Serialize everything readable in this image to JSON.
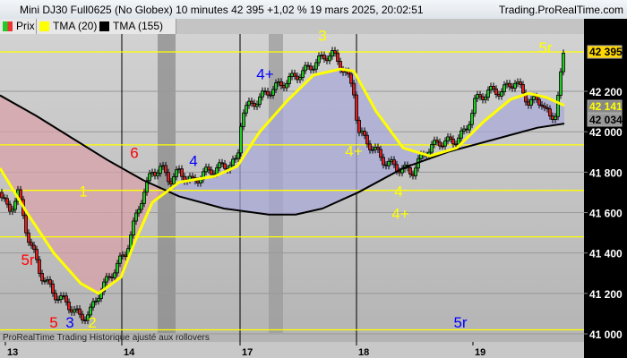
{
  "header": {
    "title": "Mini DJ30 Full0625 (No Globex) 10 minutes 42 395 +1,02 % 19 mars 2025, 20:02:51",
    "site": "Trading.ProRealTime.com"
  },
  "legend": [
    {
      "label": "Prix",
      "color": "#e03030"
    },
    {
      "label": "TMA (20)",
      "color": "#ffff00"
    },
    {
      "label": "TMA (155)",
      "color": "#000000"
    }
  ],
  "footer": "ProRealTime Trading  Historique ajusté aux rollovers",
  "chart_data": {
    "type": "line",
    "ylim": [
      40990,
      42500
    ],
    "y_ticks": [
      "42 200",
      "42 000",
      "41 800",
      "41 600",
      "41 400",
      "41 200",
      "41 000"
    ],
    "y_tick_values": [
      42200,
      42000,
      41800,
      41600,
      41400,
      41200,
      41000
    ],
    "x_ticks": [
      "13",
      "14",
      "17",
      "18",
      "19"
    ],
    "price_labels": [
      {
        "text": "42 395",
        "value": 42395,
        "color": "#ffd700"
      },
      {
        "text": "42 141",
        "value": 42141,
        "color": "#ffff00"
      },
      {
        "text": "42 034",
        "value": 42034,
        "color": "#999999"
      }
    ],
    "horizontal_levels": [
      42395,
      41935,
      41710,
      41480,
      41020
    ],
    "series": [
      {
        "name": "Prix",
        "points": [
          [
            0,
            41700
          ],
          [
            10,
            41600
          ],
          [
            20,
            41700
          ],
          [
            30,
            41500
          ],
          [
            45,
            41300
          ],
          [
            60,
            41200
          ],
          [
            75,
            41150
          ],
          [
            90,
            41080
          ],
          [
            100,
            41100
          ],
          [
            110,
            41200
          ],
          [
            125,
            41300
          ],
          [
            140,
            41400
          ],
          [
            150,
            41550
          ],
          [
            160,
            41700
          ],
          [
            170,
            41800
          ],
          [
            180,
            41820
          ],
          [
            190,
            41760
          ],
          [
            200,
            41800
          ],
          [
            215,
            41750
          ],
          [
            230,
            41800
          ],
          [
            250,
            41830
          ],
          [
            265,
            41850
          ],
          [
            270,
            42100
          ],
          [
            285,
            42150
          ],
          [
            300,
            42200
          ],
          [
            320,
            42250
          ],
          [
            340,
            42300
          ],
          [
            355,
            42350
          ],
          [
            370,
            42390
          ],
          [
            385,
            42300
          ],
          [
            395,
            42200
          ],
          [
            400,
            42000
          ],
          [
            410,
            41950
          ],
          [
            420,
            41900
          ],
          [
            430,
            41850
          ],
          [
            445,
            41820
          ],
          [
            460,
            41800
          ],
          [
            475,
            41900
          ],
          [
            490,
            41950
          ],
          [
            505,
            41950
          ],
          [
            520,
            42000
          ],
          [
            530,
            42150
          ],
          [
            545,
            42200
          ],
          [
            560,
            42200
          ],
          [
            575,
            42250
          ],
          [
            590,
            42150
          ],
          [
            605,
            42150
          ],
          [
            615,
            42050
          ],
          [
            620,
            42100
          ],
          [
            625,
            42250
          ],
          [
            630,
            42395
          ]
        ]
      },
      {
        "name": "TMA (20)",
        "points": [
          [
            0,
            41820
          ],
          [
            30,
            41600
          ],
          [
            60,
            41400
          ],
          [
            90,
            41250
          ],
          [
            110,
            41200
          ],
          [
            135,
            41280
          ],
          [
            150,
            41450
          ],
          [
            170,
            41650
          ],
          [
            200,
            41750
          ],
          [
            240,
            41780
          ],
          [
            265,
            41830
          ],
          [
            290,
            42000
          ],
          [
            320,
            42150
          ],
          [
            350,
            42280
          ],
          [
            380,
            42310
          ],
          [
            395,
            42300
          ],
          [
            420,
            42100
          ],
          [
            450,
            41920
          ],
          [
            480,
            41880
          ],
          [
            510,
            41920
          ],
          [
            540,
            42050
          ],
          [
            570,
            42160
          ],
          [
            590,
            42190
          ],
          [
            610,
            42170
          ],
          [
            630,
            42130
          ]
        ]
      },
      {
        "name": "TMA (155)",
        "points": [
          [
            0,
            42180
          ],
          [
            40,
            42080
          ],
          [
            80,
            41970
          ],
          [
            120,
            41860
          ],
          [
            160,
            41760
          ],
          [
            200,
            41680
          ],
          [
            250,
            41620
          ],
          [
            300,
            41590
          ],
          [
            330,
            41590
          ],
          [
            360,
            41620
          ],
          [
            400,
            41700
          ],
          [
            450,
            41820
          ],
          [
            500,
            41900
          ],
          [
            550,
            41960
          ],
          [
            600,
            42020
          ],
          [
            630,
            42040
          ]
        ]
      }
    ],
    "annotations": [
      {
        "text": "3",
        "color": "#ffff00",
        "pos": [
          360,
          42450
        ]
      },
      {
        "text": "5r",
        "color": "#ffff00",
        "pos": [
          609,
          42390
        ]
      },
      {
        "text": "4+",
        "color": "#0000ff",
        "pos": [
          296,
          42260
        ]
      },
      {
        "text": "6",
        "color": "#ff0000",
        "pos": [
          150,
          41870
        ]
      },
      {
        "text": "4",
        "color": "#0000ff",
        "pos": [
          216,
          41830
        ]
      },
      {
        "text": "1",
        "color": "#ffff00",
        "pos": [
          93,
          41680
        ]
      },
      {
        "text": "4+",
        "color": "#ffff00",
        "pos": [
          395,
          41880
        ]
      },
      {
        "text": "4",
        "color": "#ffff00",
        "pos": [
          445,
          41680
        ]
      },
      {
        "text": "4+",
        "color": "#ffff00",
        "pos": [
          447,
          41570
        ]
      },
      {
        "text": "5r",
        "color": "#ff0000",
        "pos": [
          31,
          41340
        ]
      },
      {
        "text": "3",
        "color": "#0000ff",
        "pos": [
          78,
          40990
        ]
      },
      {
        "text": "2",
        "color": "#ffff00",
        "pos": [
          103,
          40990
        ]
      },
      {
        "text": "5",
        "color": "#ff0000",
        "pos": [
          60,
          40940
        ]
      },
      {
        "text": "5r",
        "color": "#0000ff",
        "pos": [
          514,
          40990
        ]
      }
    ]
  }
}
